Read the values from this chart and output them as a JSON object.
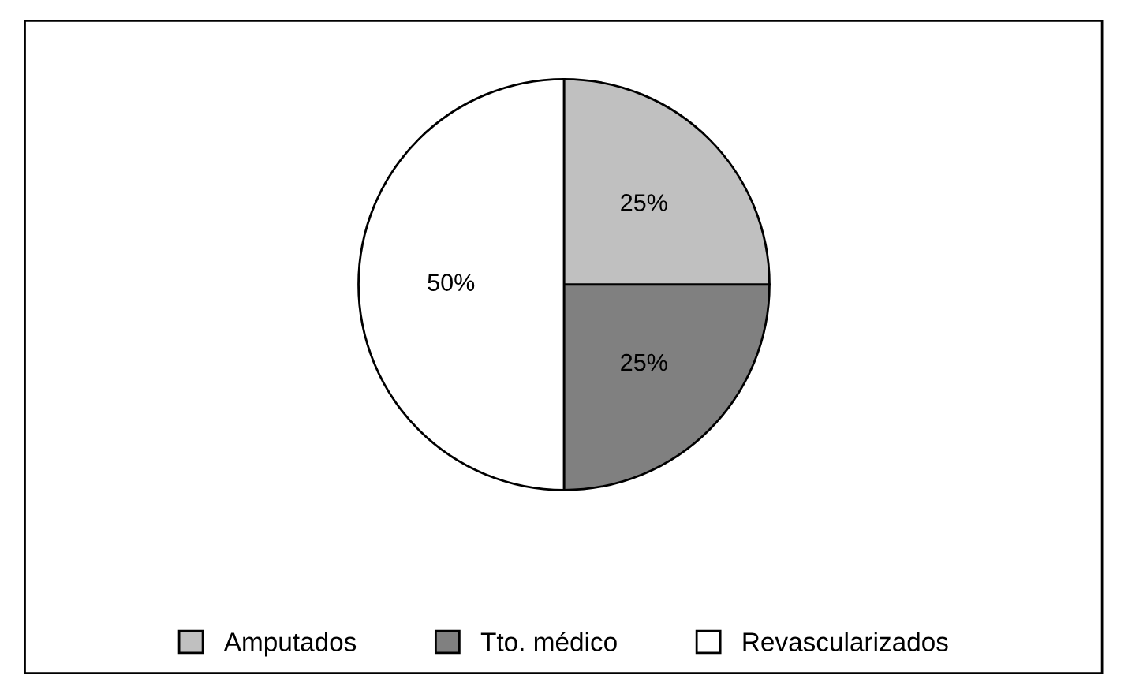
{
  "chart_data": {
    "type": "pie",
    "categories": [
      "Amputados",
      "Tto. médico",
      "Revascularizados"
    ],
    "values": [
      25,
      25,
      50
    ],
    "colors": [
      "#c0c0c0",
      "#808080",
      "#ffffff"
    ],
    "value_labels": [
      "25%",
      "25%",
      "50%"
    ],
    "legend": "bottom"
  }
}
